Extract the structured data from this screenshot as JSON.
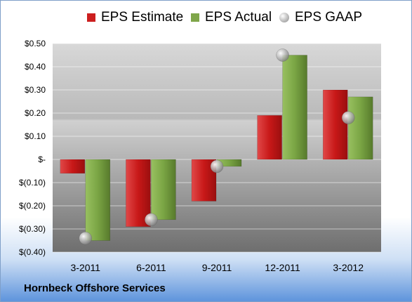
{
  "company": "Hornbeck Offshore Services",
  "chart_data": {
    "type": "bar",
    "title": "",
    "xlabel": "",
    "ylabel": "",
    "categories": [
      "3-2011",
      "6-2011",
      "9-2011",
      "12-2011",
      "3-2012"
    ],
    "series": [
      {
        "name": "EPS Estimate",
        "type": "bar",
        "color": "#cc1f1f",
        "values": [
          -0.06,
          -0.29,
          -0.18,
          0.19,
          0.3
        ]
      },
      {
        "name": "EPS Actual",
        "type": "bar",
        "color": "#7fa64a",
        "values": [
          -0.35,
          -0.26,
          -0.03,
          0.45,
          0.27
        ]
      },
      {
        "name": "EPS GAAP",
        "type": "scatter",
        "color": "#a8a8a8",
        "values": [
          -0.34,
          -0.26,
          -0.03,
          0.45,
          0.18
        ]
      }
    ],
    "ylim": [
      -0.4,
      0.5
    ],
    "yticks": [
      0.5,
      0.4,
      0.3,
      0.2,
      0.1,
      0.0,
      -0.1,
      -0.2,
      -0.3,
      -0.4
    ],
    "ytick_labels": [
      "$0.50",
      "$0.40",
      "$0.30",
      "$0.20",
      "$0.10",
      "$-",
      "$(0.10)",
      "$(0.20)",
      "$(0.30)",
      "$(0.40)"
    ],
    "grid": true,
    "legend": "top"
  }
}
